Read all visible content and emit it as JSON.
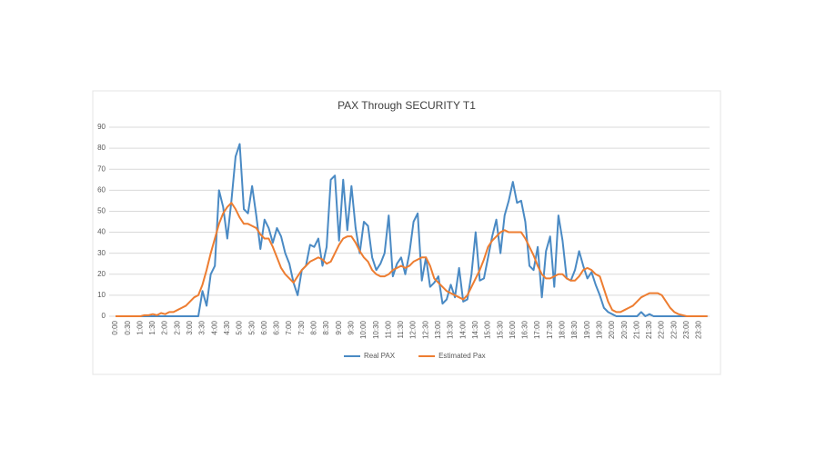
{
  "chart_data": {
    "type": "line",
    "title": "PAX Through SECURITY T1",
    "categories": [
      "0:00",
      null,
      null,
      "0:30",
      null,
      null,
      "1:00",
      null,
      null,
      "1:30",
      null,
      null,
      "2:00",
      null,
      null,
      "2:30",
      null,
      null,
      "3:00",
      null,
      null,
      "3:30",
      null,
      null,
      "4:00",
      null,
      null,
      "4:30",
      null,
      null,
      "5:00",
      null,
      null,
      "5:30",
      null,
      null,
      "6:00",
      null,
      null,
      "6:30",
      null,
      null,
      "7:00",
      null,
      null,
      "7:30",
      null,
      null,
      "8:00",
      null,
      null,
      "8:30",
      null,
      null,
      "9:00",
      null,
      null,
      "9:30",
      null,
      null,
      "10:00",
      null,
      null,
      "10:30",
      null,
      null,
      "11:00",
      null,
      null,
      "11:30",
      null,
      null,
      "12:00",
      null,
      null,
      "12:30",
      null,
      null,
      "13:00",
      null,
      null,
      "13:30",
      null,
      null,
      "14:00",
      null,
      null,
      "14:30",
      null,
      null,
      "15:00",
      null,
      null,
      "15:30",
      null,
      null,
      "16:00",
      null,
      null,
      "16:30",
      null,
      null,
      "17:00",
      null,
      null,
      "17:30",
      null,
      null,
      "18:00",
      null,
      null,
      "18:30",
      null,
      null,
      "19:00",
      null,
      null,
      "19:30",
      null,
      null,
      "20:00",
      null,
      null,
      "20:30",
      null,
      null,
      "21:00",
      null,
      null,
      "21:30",
      null,
      null,
      "22:00",
      null,
      null,
      "22:30",
      null,
      null,
      "23:00",
      null,
      null,
      "23:30",
      null,
      null
    ],
    "series": [
      {
        "name": "Real PAX",
        "color": "#4a8ac4",
        "values": [
          0,
          0,
          0,
          0,
          0,
          0,
          0,
          0,
          0,
          0,
          0,
          0,
          0,
          0,
          0,
          0,
          0,
          0,
          0,
          0,
          0,
          12,
          5,
          20,
          24,
          60,
          52,
          37,
          55,
          76,
          82,
          51,
          49,
          62,
          48,
          32,
          46,
          42,
          35,
          42,
          38,
          30,
          25,
          16,
          10,
          22,
          24,
          34,
          33,
          37,
          24,
          33,
          65,
          67,
          36,
          65,
          41,
          62,
          42,
          30,
          45,
          43,
          28,
          22,
          25,
          30,
          48,
          19,
          25,
          28,
          20,
          30,
          45,
          49,
          17,
          28,
          14,
          16,
          19,
          6,
          8,
          15,
          9,
          23,
          7,
          8,
          20,
          40,
          17,
          18,
          28,
          38,
          46,
          30,
          48,
          55,
          64,
          54,
          55,
          45,
          24,
          22,
          33,
          9,
          31,
          38,
          14,
          48,
          36,
          18,
          17,
          22,
          31,
          24,
          18,
          21,
          15,
          10,
          4,
          2,
          1,
          0,
          0,
          0,
          0,
          0,
          0,
          2,
          0,
          1,
          0,
          0,
          0,
          0,
          0,
          0,
          0,
          0,
          0,
          0,
          0,
          0,
          0,
          0
        ]
      },
      {
        "name": "Estimated Pax",
        "color": "#ed7d31",
        "values": [
          0,
          0,
          0,
          0,
          0,
          0,
          0,
          0.5,
          0.5,
          1,
          0.5,
          1.5,
          1,
          2,
          2,
          3,
          4,
          5,
          7,
          9,
          10,
          15,
          22,
          30,
          37,
          44,
          49,
          52,
          54,
          51,
          47,
          44,
          44,
          43,
          42,
          39,
          37,
          37,
          33,
          28,
          23,
          20,
          18,
          16,
          19,
          22,
          24,
          26,
          27,
          28,
          27,
          25,
          26,
          30,
          34,
          37,
          38,
          38,
          35,
          31,
          28,
          26,
          22,
          20,
          19,
          19,
          20,
          22,
          23,
          24,
          23,
          24,
          26,
          27,
          28,
          28,
          24,
          18,
          16,
          14,
          12,
          11,
          10,
          9,
          8,
          10,
          14,
          18,
          22,
          27,
          33,
          36,
          38,
          40,
          41,
          40,
          40,
          40,
          40,
          37,
          33,
          29,
          24,
          20,
          18,
          18,
          19,
          20,
          20,
          18,
          17,
          17,
          19,
          22,
          23,
          22,
          20,
          19,
          13,
          7,
          3,
          2,
          2,
          3,
          4,
          5,
          7,
          9,
          10,
          11,
          11,
          11,
          10,
          7,
          4,
          2,
          1,
          0.5,
          0,
          0,
          0,
          0,
          0,
          0
        ]
      }
    ],
    "ylim": [
      0,
      90
    ],
    "yticks": [
      0,
      10,
      20,
      30,
      40,
      50,
      60,
      70,
      80,
      90
    ],
    "grid": true,
    "legend": "bottom"
  }
}
